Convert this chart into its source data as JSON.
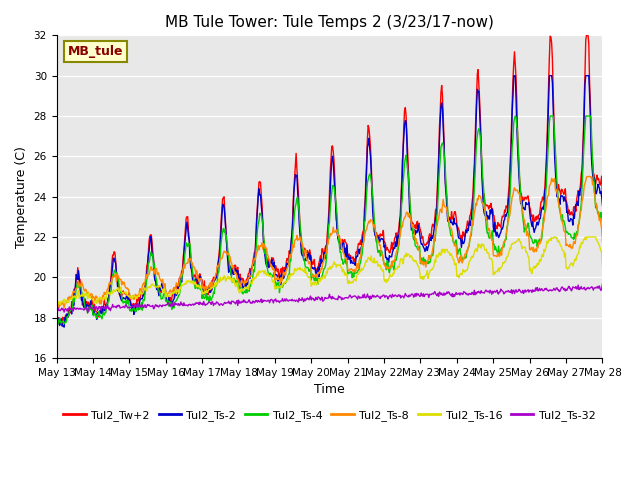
{
  "title": "MB Tule Tower: Tule Temps 2 (3/23/17-now)",
  "xlabel": "Time",
  "ylabel": "Temperature (C)",
  "ylim": [
    16,
    32
  ],
  "yticks": [
    16,
    18,
    20,
    22,
    24,
    26,
    28,
    30,
    32
  ],
  "plot_bg": "#e8e8e8",
  "fig_bg": "#ffffff",
  "legend_label": "MB_tule",
  "series_labels": [
    "Tul2_Tw+2",
    "Tul2_Ts-2",
    "Tul2_Ts-4",
    "Tul2_Ts-8",
    "Tul2_Ts-16",
    "Tul2_Ts-32"
  ],
  "series_colors": [
    "#ff0000",
    "#0000cc",
    "#00cc00",
    "#ff8800",
    "#dddd00",
    "#aa00cc"
  ],
  "start_day": 13,
  "end_day": 28,
  "lw": 1.0,
  "title_fontsize": 11,
  "axis_fontsize": 9,
  "tick_fontsize": 7.5,
  "legend_fontsize": 8
}
